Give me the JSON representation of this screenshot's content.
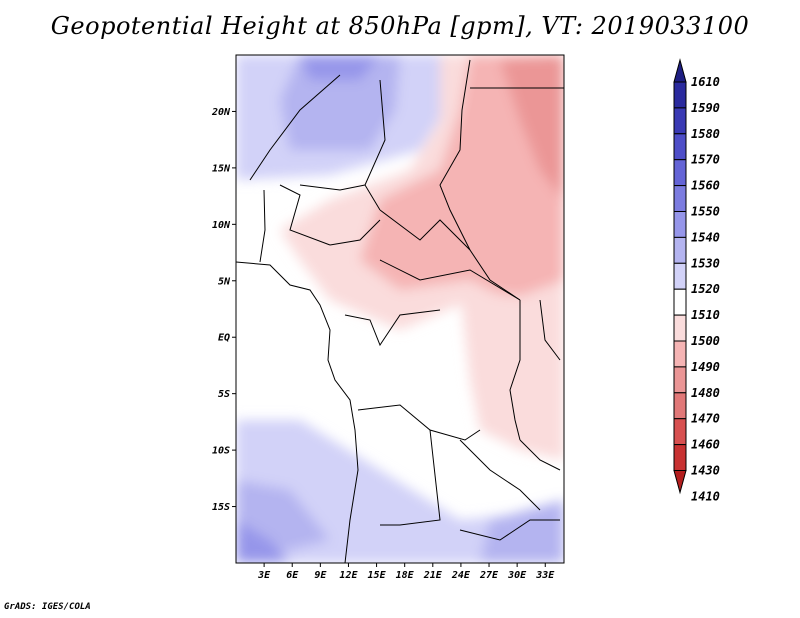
{
  "title": "Geopotential Height at 850hPa [gpm], VT: 2019033100",
  "credit": "GrADS: IGES/COLA",
  "lat_ticks": [
    {
      "label": "20N",
      "value": 20
    },
    {
      "label": "15N",
      "value": 15
    },
    {
      "label": "10N",
      "value": 10
    },
    {
      "label": "5N",
      "value": 5
    },
    {
      "label": "EQ",
      "value": 0
    },
    {
      "label": "5S",
      "value": -5
    },
    {
      "label": "10S",
      "value": -10
    },
    {
      "label": "15S",
      "value": -15
    }
  ],
  "lon_ticks": [
    {
      "label": "3E",
      "value": 3
    },
    {
      "label": "6E",
      "value": 6
    },
    {
      "label": "9E",
      "value": 9
    },
    {
      "label": "12E",
      "value": 12
    },
    {
      "label": "15E",
      "value": 15
    },
    {
      "label": "18E",
      "value": 18
    },
    {
      "label": "21E",
      "value": 21
    },
    {
      "label": "24E",
      "value": 24
    },
    {
      "label": "27E",
      "value": 27
    },
    {
      "label": "30E",
      "value": 30
    },
    {
      "label": "33E",
      "value": 33
    }
  ],
  "map_extent": {
    "lon_min": 0,
    "lon_max": 35,
    "lat_min": -20,
    "lat_max": 25
  },
  "colorbar": {
    "levels": [
      "1610",
      "1590",
      "1580",
      "1570",
      "1560",
      "1550",
      "1540",
      "1530",
      "1520",
      "1510",
      "1500",
      "1490",
      "1480",
      "1470",
      "1460",
      "1430",
      "1410"
    ],
    "colors": [
      "#1e1e82",
      "#2a2a9e",
      "#3a3ab4",
      "#4e4ec8",
      "#6464d6",
      "#7c7ce0",
      "#9696ea",
      "#b4b4f0",
      "#d2d2f8",
      "#ffffff",
      "#fadcdc",
      "#f5b4b4",
      "#eb9696",
      "#e17878",
      "#d75050",
      "#c83232",
      "#b41e1e"
    ]
  }
}
